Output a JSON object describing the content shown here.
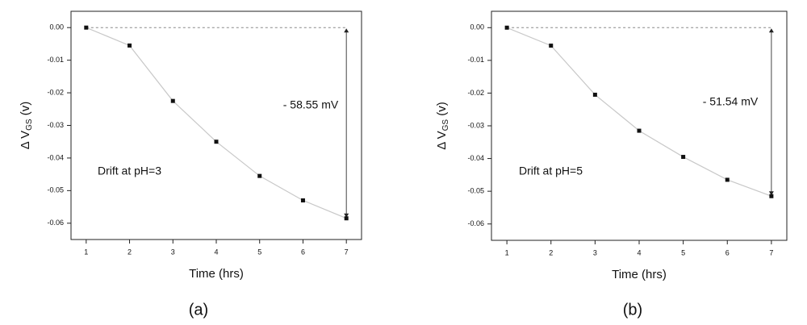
{
  "chart_data": [
    {
      "type": "line",
      "caption": "(a)",
      "x_label": "Time (hrs)",
      "y_label_parts": [
        "Δ V",
        "GS",
        " (v)"
      ],
      "x": [
        1,
        2,
        3,
        4,
        5,
        6,
        7
      ],
      "values": [
        0,
        -0.0055,
        -0.0225,
        -0.035,
        -0.0455,
        -0.053,
        -0.0585
      ],
      "color": "#c8c8c8",
      "marker_color": "#111111",
      "xlim": [
        0.65,
        7.35
      ],
      "xticks": [
        1,
        2,
        3,
        4,
        5,
        6,
        7
      ],
      "ylim": [
        -0.065,
        0.005
      ],
      "yticks": [
        {
          "value": 0,
          "label": "0.00"
        },
        {
          "value": -0.01,
          "label": "-0.01"
        },
        {
          "value": -0.02,
          "label": "-0.02"
        },
        {
          "value": -0.03,
          "label": "-0.03"
        },
        {
          "value": -0.04,
          "label": "-0.04"
        },
        {
          "value": -0.05,
          "label": "-0.05"
        },
        {
          "value": -0.06,
          "label": "-0.06"
        }
      ],
      "annotations": [
        "- 58.55 mV",
        "Drift at pH=3"
      ]
    },
    {
      "type": "line",
      "caption": "(b)",
      "x_label": "Time (hrs)",
      "y_label_parts": [
        "Δ V",
        "GS",
        " (v)"
      ],
      "x": [
        1,
        2,
        3,
        4,
        5,
        6,
        7
      ],
      "values": [
        0,
        -0.0055,
        -0.0205,
        -0.0315,
        -0.0395,
        -0.0465,
        -0.0515
      ],
      "color": "#c8c8c8",
      "marker_color": "#111111",
      "xlim": [
        0.65,
        7.35
      ],
      "xticks": [
        1,
        2,
        3,
        4,
        5,
        6,
        7
      ],
      "ylim": [
        -0.065,
        0.005
      ],
      "yticks": [
        {
          "value": 0,
          "label": "0.00"
        },
        {
          "value": -0.01,
          "label": "-0.01"
        },
        {
          "value": -0.02,
          "label": "-0.02"
        },
        {
          "value": -0.03,
          "label": "-0.03"
        },
        {
          "value": -0.04,
          "label": "-0.04"
        },
        {
          "value": -0.05,
          "label": "-0.05"
        },
        {
          "value": -0.06,
          "label": "-0.06"
        }
      ],
      "annotations": [
        "- 51.54 mV",
        "Drift at pH=5"
      ]
    }
  ]
}
